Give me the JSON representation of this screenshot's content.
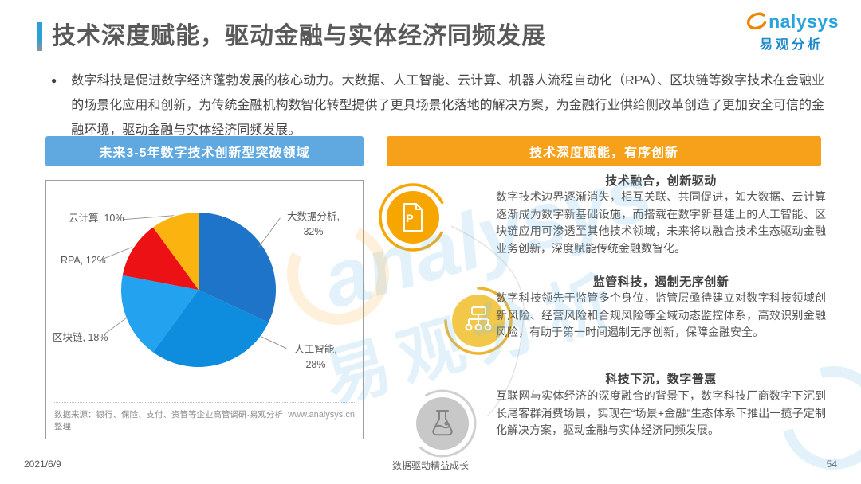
{
  "page": {
    "title": "技术深度赋能，驱动金融与实体经济同频发展",
    "bullet_glyph": "●",
    "intro": "数字科技是促进数字经济蓬勃发展的核心动力。大数据、人工智能、云计算、机器人流程自动化（RPA）、区块链等数字技术在金融业的场景化应用和创新，为传统金融机构数智化转型提供了更具场景化落地的解决方案，为金融行业供给侧改革创造了更加安全可信的金融环境，驱动金融与实体经济同频发展。",
    "footer": {
      "date": "2021/6/9",
      "motto": "数据驱动精益成长",
      "page_number": "54"
    },
    "logo": {
      "brand_text": "nalysys",
      "brand_full": "analysys",
      "brand_cn": "易观分析"
    },
    "watermark": {
      "text_en": "analysys",
      "text_cn": "易观分析"
    }
  },
  "left_panel": {
    "header": "未来3-5年数字技术创新型突破领域",
    "source_note": "数据来源：银行、保险、支付、资管等企业高管调研·易观分析整理",
    "source_url": "www.analysys.cn"
  },
  "right_panel": {
    "header": "技术深度赋能，有序创新",
    "sections": [
      {
        "icon": "document-p-icon",
        "title": "技术融合，创新驱动",
        "body": "数字技术边界逐渐消失，相互关联、共同促进，如大数据、云计算逐渐成为数字新基础设施，而搭载在数字新基建上的人工智能、区块链应用可渗透至其他技术领域，未来将以融合技术生态驱动金融业务创新，深度赋能传统金融数智化。"
      },
      {
        "icon": "sitemap-icon",
        "title": "监管科技，遏制无序创新",
        "body": "数字科技领先于监管多个身位，监管层亟待建立对数字科技领域创新风险、经营风险和合规风险等全域动态监控体系，高效识别金融风险，有助于第一时间遏制无序创新，保障金融安全。"
      },
      {
        "icon": "flask-icon",
        "title": "科技下沉，数字普惠",
        "body": "互联网与实体经济的深度融合的背景下，数字科技厂商数字下沉到长尾客群消费场景，实现在“场景+金融”生态体系下推出一揽子定制化解决方案，驱动金融与实体经济同频发展。"
      }
    ]
  },
  "chart_data": {
    "type": "pie",
    "title": "未来3-5年数字技术创新型突破领域",
    "direction": "clockwise",
    "start_angle_deg": 0,
    "legend_position": "callout-labels",
    "slices": [
      {
        "label": "大数据分析",
        "value": 32,
        "color": "#1E74C8"
      },
      {
        "label": "人工智能",
        "value": 28,
        "color": "#0E8CDE"
      },
      {
        "label": "区块链",
        "value": 18,
        "color": "#22A2EF"
      },
      {
        "label": "RPA",
        "value": 12,
        "color": "#EC1115"
      },
      {
        "label": "云计算",
        "value": 10,
        "color": "#FBB30F"
      }
    ]
  },
  "colors": {
    "accent_blue": "#29A0D8",
    "panel_header_blue": "#5FA9E0",
    "panel_header_orange": "#F7A11A",
    "icon_circle_orange": "#F7A600",
    "icon_circle_gold": "#F2C84B",
    "icon_circle_gray": "#C8C8C8",
    "brand_blue": "#29A3DC"
  }
}
